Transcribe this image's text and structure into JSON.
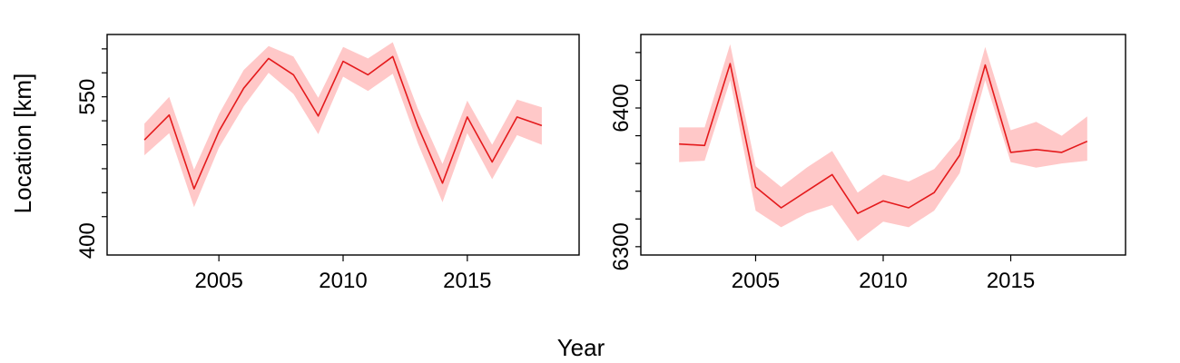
{
  "figure": {
    "xlabel": "Year",
    "ylabel": "Location [km]"
  },
  "chart_data": [
    {
      "type": "line",
      "name": "left-panel",
      "xlim": [
        2000.5,
        2019.5
      ],
      "ylim": [
        385,
        615
      ],
      "xticks": [
        2005,
        2010,
        2015
      ],
      "yticks": [
        400,
        550
      ],
      "yminor": [
        425,
        450,
        475,
        500,
        525,
        550,
        575,
        600
      ],
      "ytick_labels": [
        "400",
        "550"
      ],
      "line_color": "#e41a1c",
      "band_color": "#ffc8c8",
      "x": [
        2002,
        2003,
        2004,
        2005,
        2006,
        2007,
        2008,
        2009,
        2010,
        2011,
        2012,
        2013,
        2014,
        2015,
        2016,
        2017,
        2018
      ],
      "y": [
        505,
        531,
        454,
        514,
        559,
        590,
        573,
        530,
        587,
        573,
        592,
        520,
        460,
        529,
        482,
        529,
        520
      ],
      "lower": [
        489,
        512,
        435,
        497,
        540,
        575,
        553,
        511,
        571,
        556,
        574,
        502,
        440,
        512,
        464,
        510,
        500
      ],
      "upper": [
        522,
        550,
        474,
        532,
        578,
        603,
        592,
        549,
        602,
        590,
        607,
        538,
        480,
        546,
        500,
        547,
        539
      ]
    },
    {
      "type": "line",
      "name": "right-panel",
      "xlim": [
        2000.5,
        2019.5
      ],
      "ylim": [
        6294,
        6453
      ],
      "xticks": [
        2005,
        2010,
        2015
      ],
      "yticks": [
        6300,
        6400
      ],
      "yminor": [
        6300,
        6320,
        6340,
        6360,
        6380,
        6400,
        6420,
        6440
      ],
      "ytick_labels": [
        "6300",
        "6400"
      ],
      "line_color": "#e41a1c",
      "band_color": "#ffc8c8",
      "x": [
        2002,
        2003,
        2004,
        2005,
        2006,
        2007,
        2008,
        2009,
        2010,
        2011,
        2012,
        2013,
        2014,
        2015,
        2016,
        2017,
        2018
      ],
      "y": [
        6374,
        6373,
        6432,
        6343,
        6328,
        6340,
        6352,
        6324,
        6333,
        6328,
        6339,
        6366,
        6431,
        6368,
        6370,
        6368,
        6376
      ],
      "lower": [
        6361,
        6362,
        6420,
        6326,
        6314,
        6324,
        6330,
        6304,
        6318,
        6314,
        6326,
        6353,
        6420,
        6361,
        6357,
        6360,
        6362
      ],
      "upper": [
        6386,
        6386,
        6446,
        6358,
        6343,
        6357,
        6369,
        6339,
        6352,
        6347,
        6356,
        6378,
        6444,
        6384,
        6390,
        6380,
        6394
      ]
    }
  ]
}
